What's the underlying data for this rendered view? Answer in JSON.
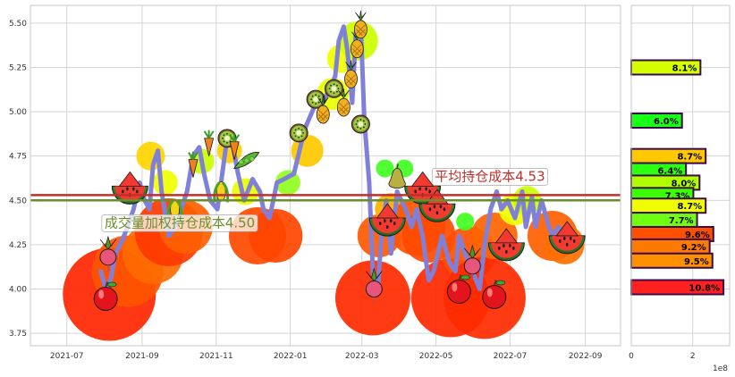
{
  "chart_data": [
    {
      "type": "scatter",
      "title": "",
      "xlabel": "",
      "ylabel": "",
      "grid": true,
      "x_ticks": [
        "2021-07",
        "2021-09",
        "2021-11",
        "2022-01",
        "2022-03",
        "2022-05",
        "2022-07",
        "2022-09"
      ],
      "y_ticks": [
        "3.75",
        "4.00",
        "4.25",
        "4.50",
        "4.75",
        "5.00",
        "5.25",
        "5.50"
      ],
      "xlim": [
        "2021-06-01",
        "2022-09-30"
      ],
      "ylim": [
        3.68,
        5.6
      ],
      "price_line_color": "#8080d8",
      "price_series": [
        [
          "2021-07-29",
          4.1
        ],
        [
          "2021-08-02",
          4.0
        ],
        [
          "2021-08-06",
          4.05
        ],
        [
          "2021-08-10",
          4.2
        ],
        [
          "2021-08-16",
          4.28
        ],
        [
          "2021-08-20",
          4.35
        ],
        [
          "2021-08-25",
          4.45
        ],
        [
          "2021-08-30",
          4.6
        ],
        [
          "2021-09-03",
          4.5
        ],
        [
          "2021-09-07",
          4.45
        ],
        [
          "2021-09-10",
          4.7
        ],
        [
          "2021-09-14",
          4.78
        ],
        [
          "2021-09-17",
          4.55
        ],
        [
          "2021-09-23",
          4.3
        ],
        [
          "2021-09-28",
          4.35
        ],
        [
          "2021-10-08",
          4.55
        ],
        [
          "2021-10-13",
          4.75
        ],
        [
          "2021-10-18",
          4.8
        ],
        [
          "2021-10-22",
          4.65
        ],
        [
          "2021-10-27",
          4.5
        ],
        [
          "2021-11-02",
          4.45
        ],
        [
          "2021-11-05",
          4.6
        ],
        [
          "2021-11-10",
          4.85
        ],
        [
          "2021-11-15",
          4.8
        ],
        [
          "2021-11-19",
          4.65
        ],
        [
          "2021-11-24",
          4.5
        ],
        [
          "2021-12-01",
          4.62
        ],
        [
          "2021-12-07",
          4.55
        ],
        [
          "2021-12-10",
          4.45
        ],
        [
          "2021-12-15",
          4.4
        ],
        [
          "2021-12-21",
          4.6
        ],
        [
          "2021-12-27",
          4.62
        ],
        [
          "2022-01-04",
          4.65
        ],
        [
          "2022-01-10",
          4.82
        ],
        [
          "2022-01-14",
          4.92
        ],
        [
          "2022-01-19",
          5.0
        ],
        [
          "2022-01-25",
          5.1
        ],
        [
          "2022-01-28",
          5.05
        ],
        [
          "2022-02-07",
          5.2
        ],
        [
          "2022-02-10",
          5.4
        ],
        [
          "2022-02-14",
          5.48
        ],
        [
          "2022-02-17",
          5.35
        ],
        [
          "2022-02-21",
          5.05
        ],
        [
          "2022-02-24",
          5.45
        ],
        [
          "2022-02-28",
          5.5
        ],
        [
          "2022-03-03",
          4.95
        ],
        [
          "2022-03-07",
          4.6
        ],
        [
          "2022-03-10",
          4.1
        ],
        [
          "2022-03-14",
          3.98
        ],
        [
          "2022-03-17",
          4.3
        ],
        [
          "2022-03-21",
          4.5
        ],
        [
          "2022-03-25",
          4.2
        ],
        [
          "2022-03-30",
          4.55
        ],
        [
          "2022-04-06",
          4.45
        ],
        [
          "2022-04-11",
          4.35
        ],
        [
          "2022-04-15",
          4.45
        ],
        [
          "2022-04-20",
          4.3
        ],
        [
          "2022-04-25",
          4.05
        ],
        [
          "2022-04-29",
          4.1
        ],
        [
          "2022-05-06",
          4.3
        ],
        [
          "2022-05-12",
          4.15
        ],
        [
          "2022-05-17",
          4.1
        ],
        [
          "2022-05-20",
          4.3
        ],
        [
          "2022-05-25",
          4.2
        ],
        [
          "2022-05-31",
          4.1
        ],
        [
          "2022-06-06",
          4.0
        ],
        [
          "2022-06-10",
          4.25
        ],
        [
          "2022-06-15",
          4.45
        ],
        [
          "2022-06-20",
          4.55
        ],
        [
          "2022-06-24",
          4.45
        ],
        [
          "2022-06-29",
          4.5
        ],
        [
          "2022-07-05",
          4.4
        ],
        [
          "2022-07-11",
          4.55
        ],
        [
          "2022-07-14",
          4.35
        ],
        [
          "2022-07-19",
          4.52
        ],
        [
          "2022-07-22",
          4.35
        ],
        [
          "2022-07-27",
          4.5
        ],
        [
          "2022-08-02",
          4.35
        ],
        [
          "2022-08-05",
          4.3
        ],
        [
          "2022-08-10",
          4.35
        ],
        [
          "2022-08-15",
          4.3
        ],
        [
          "2022-08-19",
          4.25
        ]
      ],
      "volume_bubbles": [
        [
          "2021-08-05",
          3.97,
          52,
          "#ff2600"
        ],
        [
          "2021-08-20",
          4.1,
          40,
          "#ff5500"
        ],
        [
          "2021-09-10",
          4.2,
          34,
          "#ff6a00"
        ],
        [
          "2021-09-23",
          4.32,
          38,
          "#ff3a00"
        ],
        [
          "2021-10-07",
          4.35,
          30,
          "#ff6000"
        ],
        [
          "2021-09-08",
          4.75,
          16,
          "#ffd500"
        ],
        [
          "2021-09-20",
          4.6,
          14,
          "#f0ff00"
        ],
        [
          "2021-10-20",
          4.72,
          14,
          "#c8ff00"
        ],
        [
          "2021-11-12",
          4.78,
          14,
          "#ffd000"
        ],
        [
          "2021-11-25",
          4.55,
          15,
          "#e8ff00"
        ],
        [
          "2021-12-05",
          4.3,
          32,
          "#ff4a00"
        ],
        [
          "2021-12-20",
          4.3,
          30,
          "#ff4500"
        ],
        [
          "2021-12-30",
          4.6,
          14,
          "#90ff20"
        ],
        [
          "2022-01-15",
          4.78,
          18,
          "#ffc800"
        ],
        [
          "2022-02-05",
          5.1,
          18,
          "#e8ff00"
        ],
        [
          "2022-02-12",
          5.3,
          16,
          "#f0ff00"
        ],
        [
          "2022-02-26",
          5.4,
          22,
          "#ccff00"
        ],
        [
          "2022-03-10",
          3.95,
          42,
          "#ff2a00"
        ],
        [
          "2022-03-15",
          4.3,
          24,
          "#ff5a00"
        ],
        [
          "2022-03-25",
          4.45,
          18,
          "#ffb000"
        ],
        [
          "2022-04-15",
          4.35,
          32,
          "#ff5500"
        ],
        [
          "2022-04-25",
          4.3,
          30,
          "#ff4a00"
        ],
        [
          "2022-05-13",
          3.95,
          44,
          "#ff2800"
        ],
        [
          "2022-05-28",
          4.2,
          30,
          "#ff5000"
        ],
        [
          "2022-06-10",
          3.95,
          46,
          "#ff2a00"
        ],
        [
          "2022-06-18",
          4.3,
          26,
          "#ff6500"
        ],
        [
          "2022-07-05",
          4.45,
          18,
          "#f0ff00"
        ],
        [
          "2022-07-15",
          4.5,
          16,
          "#c8ff00"
        ],
        [
          "2022-08-05",
          4.3,
          28,
          "#ff6000"
        ],
        [
          "2022-08-15",
          4.25,
          22,
          "#ff7000"
        ],
        [
          "2022-03-20",
          4.68,
          10,
          "#40ff20"
        ],
        [
          "2022-04-05",
          4.68,
          10,
          "#40ff20"
        ],
        [
          "2022-05-25",
          4.38,
          10,
          "#40ff20"
        ]
      ],
      "fruit_icons": [
        [
          "2021-08-02",
          3.96,
          "apple"
        ],
        [
          "2021-08-04",
          4.2,
          "radish"
        ],
        [
          "2021-08-22",
          4.55,
          "watermelon"
        ],
        [
          "2021-09-28",
          4.45,
          "corn"
        ],
        [
          "2021-10-13",
          4.7,
          "carrot"
        ],
        [
          "2021-10-26",
          4.82,
          "carrot"
        ],
        [
          "2021-11-05",
          4.55,
          "corn"
        ],
        [
          "2021-11-10",
          4.85,
          "kiwi"
        ],
        [
          "2021-11-16",
          4.8,
          "carrot"
        ],
        [
          "2021-11-26",
          4.72,
          "peapod"
        ],
        [
          "2022-01-08",
          4.88,
          "kiwi"
        ],
        [
          "2022-01-22",
          5.07,
          "kiwi"
        ],
        [
          "2022-01-28",
          5.0,
          "pineapple"
        ],
        [
          "2022-02-06",
          5.13,
          "kiwi"
        ],
        [
          "2022-02-14",
          5.04,
          "pineapple"
        ],
        [
          "2022-02-20",
          5.2,
          "pineapple"
        ],
        [
          "2022-02-25",
          5.37,
          "pineapple"
        ],
        [
          "2022-02-28",
          5.48,
          "pineapple"
        ],
        [
          "2022-02-28",
          4.93,
          "kiwi"
        ],
        [
          "2022-03-11",
          4.02,
          "radish"
        ],
        [
          "2022-03-22",
          4.37,
          "watermelon"
        ],
        [
          "2022-03-30",
          4.62,
          "pear"
        ],
        [
          "2022-04-20",
          4.55,
          "watermelon"
        ],
        [
          "2022-05-02",
          4.45,
          "watermelon"
        ],
        [
          "2022-05-20",
          4.0,
          "apple"
        ],
        [
          "2022-05-31",
          4.15,
          "radish"
        ],
        [
          "2022-06-18",
          3.97,
          "apple"
        ],
        [
          "2022-06-28",
          4.23,
          "watermelon"
        ],
        [
          "2022-08-17",
          4.27,
          "watermelon"
        ]
      ],
      "lines": [
        {
          "label": "平均持仓成本4.53",
          "value": 4.53,
          "color": "#c0302b",
          "label_date": "2022-04-30"
        },
        {
          "label": "成交量加权持仓成本4.50",
          "value": 4.5,
          "color": "#6a8f2a",
          "label_date": "2021-08-01"
        }
      ]
    },
    {
      "type": "bar",
      "orientation": "horizontal",
      "title": "",
      "xlabel": "",
      "ylabel": "",
      "x_ticks": [
        "0",
        "2"
      ],
      "x_offset_label": "1e8",
      "xlim": [
        0,
        3.2
      ],
      "ylim": [
        3.68,
        5.6
      ],
      "bars": [
        {
          "price": 5.25,
          "value": 2.25,
          "label": "8.1%",
          "color": "#d4ff00"
        },
        {
          "price": 4.95,
          "value": 1.65,
          "label": "6.0%",
          "color": "#18ff18"
        },
        {
          "price": 4.75,
          "value": 2.42,
          "label": "8.7%",
          "color": "#ffc800"
        },
        {
          "price": 4.67,
          "value": 1.78,
          "label": "6.4%",
          "color": "#2cff10"
        },
        {
          "price": 4.6,
          "value": 2.22,
          "label": "8.0%",
          "color": "#b0ff00"
        },
        {
          "price": 4.53,
          "value": 2.02,
          "label": "7.3%",
          "color": "#3cff00"
        },
        {
          "price": 4.47,
          "value": 2.42,
          "label": "8.7%",
          "color": "#f0ff00"
        },
        {
          "price": 4.39,
          "value": 2.14,
          "label": "7.7%",
          "color": "#70ff10"
        },
        {
          "price": 4.31,
          "value": 2.67,
          "label": "9.6%",
          "color": "#ff5000"
        },
        {
          "price": 4.24,
          "value": 2.55,
          "label": "9.2%",
          "color": "#ff7a00"
        },
        {
          "price": 4.16,
          "value": 2.64,
          "label": "9.5%",
          "color": "#ff9000"
        },
        {
          "price": 4.01,
          "value": 3.0,
          "label": "10.8%",
          "color": "#ff2020"
        }
      ]
    }
  ]
}
